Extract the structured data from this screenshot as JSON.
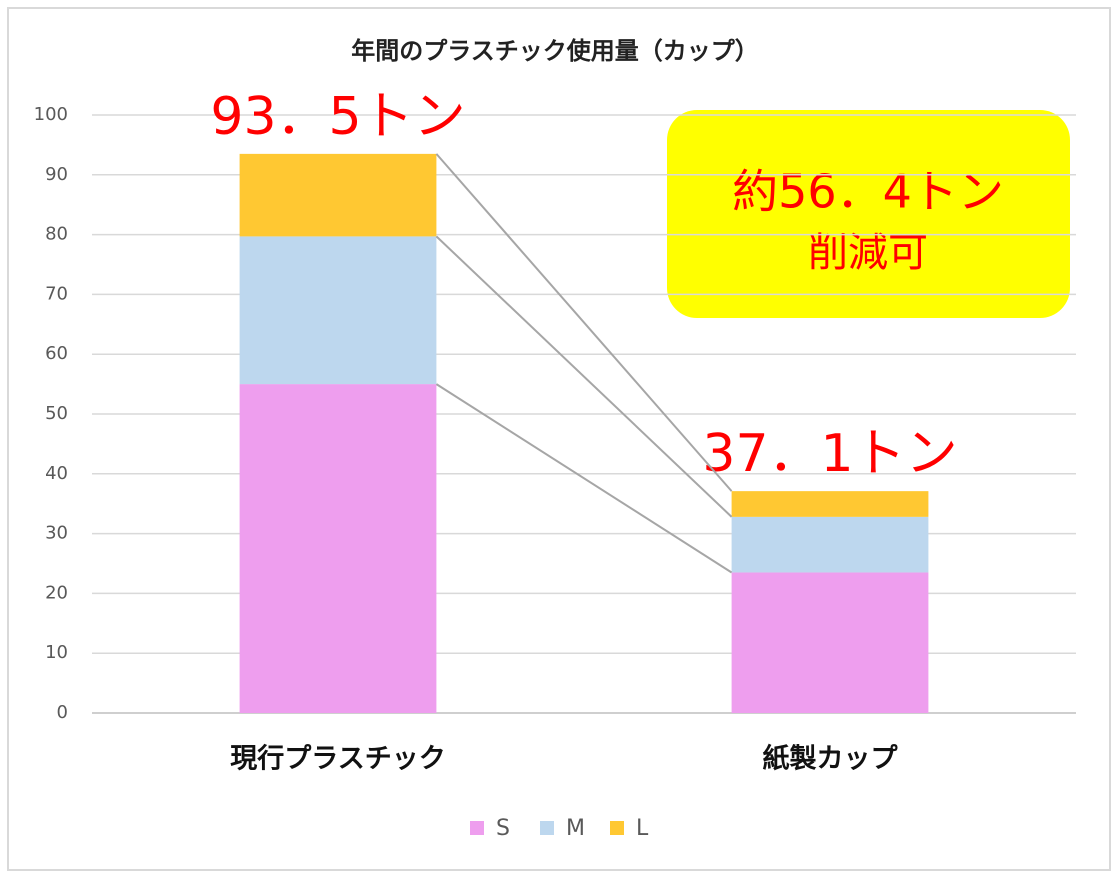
{
  "chart_data": {
    "type": "stacked_bar",
    "title": "年間のプラスチック使用量（カップ）",
    "categories": [
      "現行プラスチック",
      "紙製カップ"
    ],
    "series": [
      {
        "name": "S",
        "color": "#ee9eee",
        "values": [
          55,
          23.5
        ]
      },
      {
        "name": "M",
        "color": "#bdd7ee",
        "values": [
          24.7,
          9.3
        ]
      },
      {
        "name": "L",
        "color": "#ffc832",
        "values": [
          13.8,
          4.3
        ]
      }
    ],
    "totals": [
      93.5,
      37.1
    ],
    "total_labels": [
      "93．5トン",
      "37．1トン"
    ],
    "annotation": [
      "約56．4トン",
      "削減可"
    ],
    "ylim": [
      0,
      100
    ],
    "yticks": [
      0,
      10,
      20,
      30,
      40,
      50,
      60,
      70,
      80,
      90,
      100
    ],
    "grid": true,
    "legend": "bottom"
  }
}
